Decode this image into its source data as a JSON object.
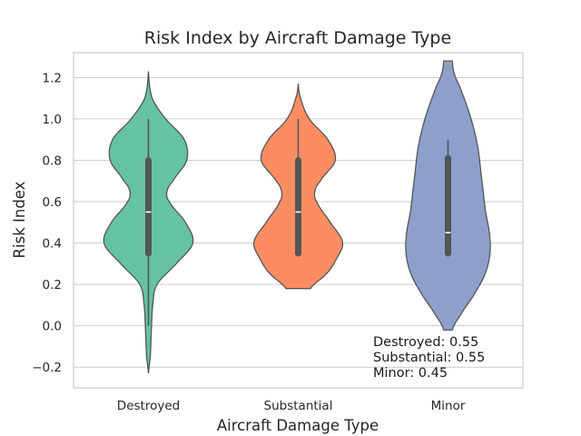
{
  "chart_data": {
    "type": "violin",
    "title": "Risk Index by Aircraft Damage Type",
    "xlabel": "Aircraft Damage Type",
    "ylabel": "Risk Index",
    "ylim": [
      -0.3,
      1.32
    ],
    "yticks": [
      -0.2,
      0.0,
      0.2,
      0.4,
      0.6,
      0.8,
      1.0,
      1.2
    ],
    "ytick_labels": [
      "−0.2",
      "0.0",
      "0.2",
      "0.4",
      "0.6",
      "0.8",
      "1.0",
      "1.2"
    ],
    "grid": true,
    "categories": [
      "Destroyed",
      "Substantial",
      "Minor"
    ],
    "series": [
      {
        "category": "Destroyed",
        "color": "#66c2a5",
        "min": 0.0,
        "q1": 0.35,
        "median": 0.55,
        "q3": 0.8,
        "max": 1.0,
        "kde_extent": [
          -0.23,
          1.23
        ],
        "density_profile": [
          [
            -0.23,
            0.0
          ],
          [
            -0.15,
            0.03
          ],
          [
            0.0,
            0.05
          ],
          [
            0.1,
            0.07
          ],
          [
            0.2,
            0.14
          ],
          [
            0.3,
            0.45
          ],
          [
            0.4,
            0.72
          ],
          [
            0.5,
            0.6
          ],
          [
            0.6,
            0.34
          ],
          [
            0.65,
            0.3
          ],
          [
            0.7,
            0.4
          ],
          [
            0.8,
            0.62
          ],
          [
            0.9,
            0.58
          ],
          [
            1.0,
            0.28
          ],
          [
            1.1,
            0.06
          ],
          [
            1.23,
            0.0
          ]
        ]
      },
      {
        "category": "Substantial",
        "color": "#fc8d62",
        "min": 0.35,
        "q1": 0.35,
        "median": 0.55,
        "q3": 0.8,
        "max": 1.0,
        "kde_extent": [
          0.18,
          1.17
        ],
        "density_profile": [
          [
            0.18,
            0.2
          ],
          [
            0.25,
            0.45
          ],
          [
            0.3,
            0.58
          ],
          [
            0.4,
            0.72
          ],
          [
            0.5,
            0.52
          ],
          [
            0.6,
            0.3
          ],
          [
            0.65,
            0.27
          ],
          [
            0.7,
            0.36
          ],
          [
            0.8,
            0.6
          ],
          [
            0.9,
            0.48
          ],
          [
            1.0,
            0.18
          ],
          [
            1.1,
            0.04
          ],
          [
            1.17,
            0.0
          ]
        ]
      },
      {
        "category": "Minor",
        "color": "#8da0cb",
        "min": 0.35,
        "q1": 0.35,
        "median": 0.45,
        "q3": 0.81,
        "max": 0.9,
        "kde_extent": [
          -0.02,
          1.28
        ],
        "density_profile": [
          [
            -0.02,
            0.07
          ],
          [
            0.05,
            0.2
          ],
          [
            0.15,
            0.42
          ],
          [
            0.25,
            0.6
          ],
          [
            0.35,
            0.68
          ],
          [
            0.45,
            0.67
          ],
          [
            0.55,
            0.61
          ],
          [
            0.65,
            0.57
          ],
          [
            0.75,
            0.53
          ],
          [
            0.85,
            0.49
          ],
          [
            0.95,
            0.42
          ],
          [
            1.05,
            0.32
          ],
          [
            1.15,
            0.2
          ],
          [
            1.22,
            0.1
          ],
          [
            1.28,
            0.07
          ]
        ]
      }
    ],
    "annotation": {
      "lines": [
        "Destroyed: 0.55",
        "Substantial: 0.55",
        "Minor: 0.45"
      ],
      "placement": "bottom-right"
    }
  }
}
